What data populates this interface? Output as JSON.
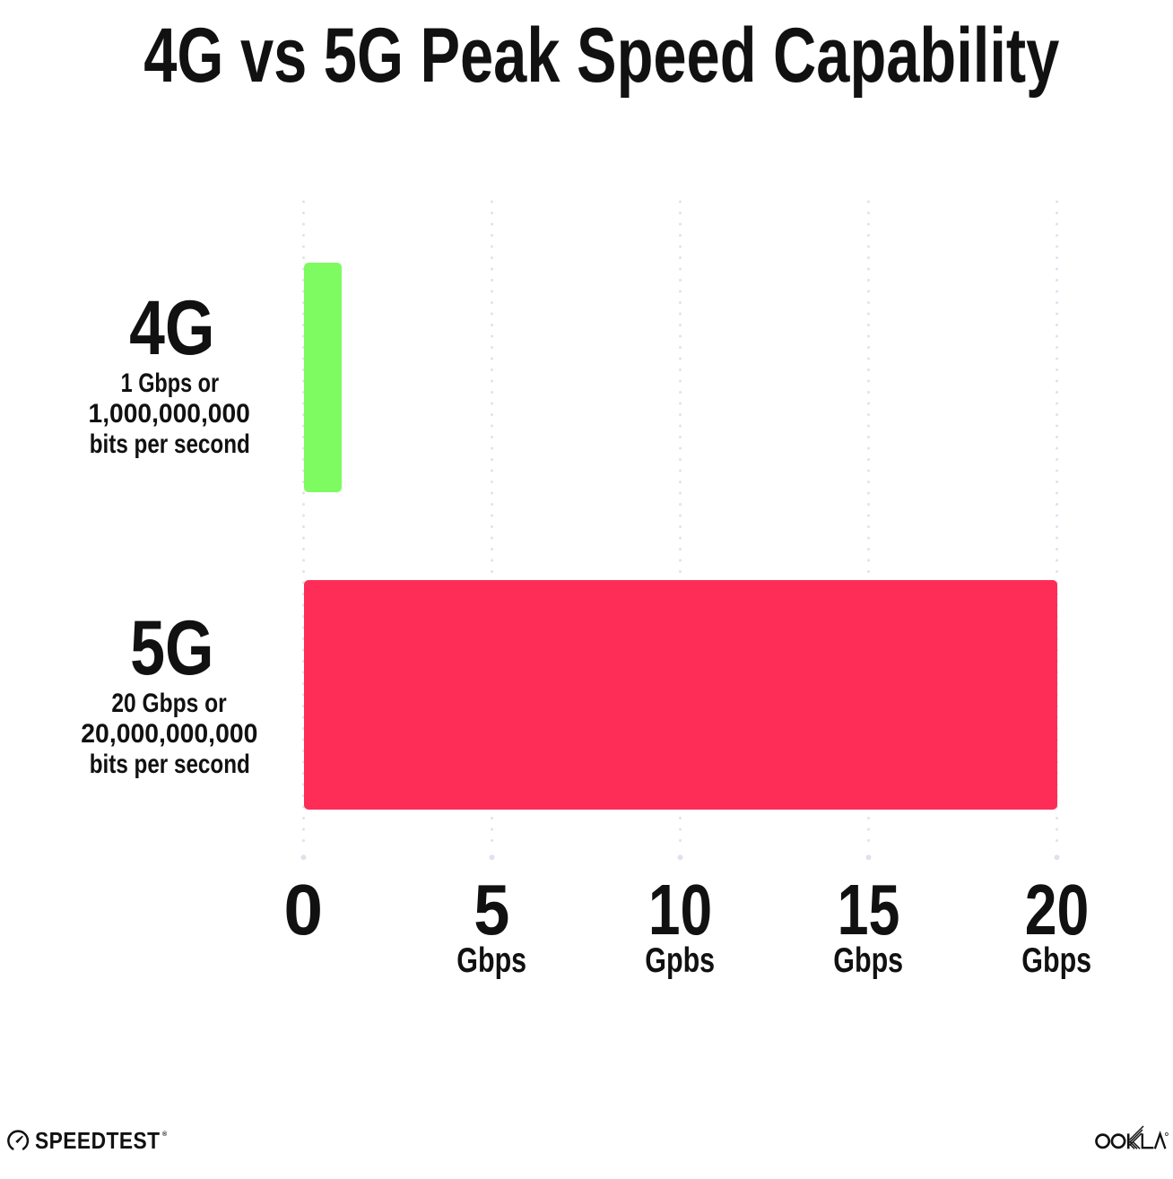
{
  "title": "4G vs 5G Peak Speed Capability",
  "colors": {
    "text": "#111111",
    "bar_4g": "#7EFB60",
    "bar_5g": "#FD2D58",
    "grid_dot": "#DEE1EE",
    "background": "#FFFFFF"
  },
  "chart_data": {
    "type": "bar",
    "orientation": "horizontal",
    "title": "4G vs 5G Peak Speed Capability",
    "categories": [
      "4G",
      "5G"
    ],
    "values": [
      1,
      20
    ],
    "value_unit": "Gbps",
    "xlim": [
      0,
      20
    ],
    "grid": "vertical-dotted",
    "legend": "none",
    "series_labels": [
      {
        "name": "4G",
        "sublabel_lines": [
          "1 Gbps or",
          "1,000,000,000",
          "bits per second"
        ],
        "color": "#7EFB60"
      },
      {
        "name": "5G",
        "sublabel_lines": [
          "20 Gbps or",
          "20,000,000,000",
          "bits per second"
        ],
        "color": "#FD2D58"
      }
    ],
    "x_ticks": [
      {
        "value": 0,
        "label": "0",
        "unit": ""
      },
      {
        "value": 5,
        "label": "5",
        "unit": "Gbps"
      },
      {
        "value": 10,
        "label": "10",
        "unit": "Gpbs"
      },
      {
        "value": 15,
        "label": "15",
        "unit": "Gbps"
      },
      {
        "value": 20,
        "label": "20",
        "unit": "Gbps"
      }
    ]
  },
  "footer": {
    "speedtest_wordmark": "SPEEDTEST",
    "speedtest_registered": "®",
    "ookla_wordmark": "OOKLA",
    "ookla_registered": "®"
  }
}
